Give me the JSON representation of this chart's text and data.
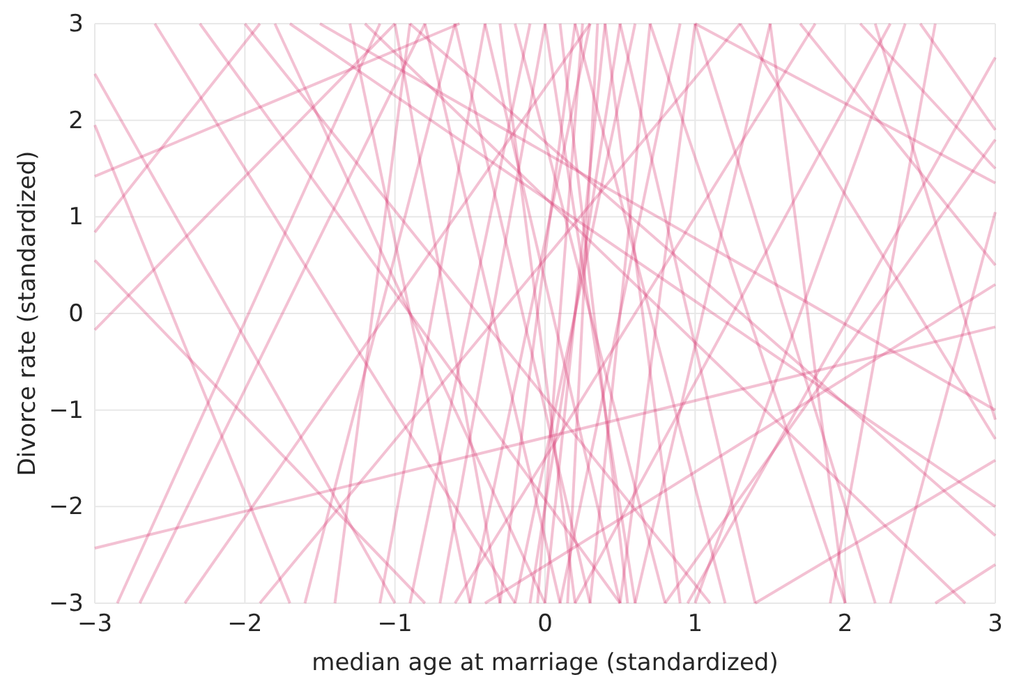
{
  "chart_data": {
    "type": "line",
    "xlabel": "median age at marriage (standardized)",
    "ylabel": "Divorce rate (standardized)",
    "color": "#d6336c",
    "xlim": [
      -3,
      3
    ],
    "ylim": [
      -3,
      3
    ],
    "xticks": [
      {
        "value": -3,
        "label": "−3"
      },
      {
        "value": -2,
        "label": "−2"
      },
      {
        "value": -1,
        "label": "−1"
      },
      0,
      1,
      2,
      3
    ],
    "yticks": [
      {
        "value": -3,
        "label": "−3"
      },
      {
        "value": -2,
        "label": "−2"
      },
      {
        "value": -1,
        "label": "−1"
      },
      0,
      1,
      2,
      3
    ],
    "grid": true,
    "marker": "none",
    "line_style": "solid",
    "series": [
      {
        "x": [
          -3,
          -0.57
        ],
        "values": [
          1.42,
          3
        ]
      },
      {
        "x": [
          -3,
          3
        ],
        "values": [
          -2.43,
          -0.14
        ]
      },
      {
        "x": [
          1.4,
          3
        ],
        "values": [
          -3,
          -1.52
        ]
      },
      {
        "x": [
          2.6,
          3
        ],
        "values": [
          -3,
          -2.6
        ]
      },
      {
        "x": [
          -3,
          -1.0
        ],
        "values": [
          -0.17,
          3
        ]
      },
      {
        "x": [
          -3,
          -0.8
        ],
        "values": [
          0.55,
          -3
        ]
      },
      {
        "x": [
          -3,
          -1.9
        ],
        "values": [
          0.84,
          3
        ]
      },
      {
        "x": [
          -3,
          -1.0
        ],
        "values": [
          2.48,
          -3
        ]
      },
      {
        "x": [
          -3,
          -1.7
        ],
        "values": [
          1.95,
          -3
        ]
      },
      {
        "x": [
          -2.85,
          -1.1
        ],
        "values": [
          -3,
          3
        ]
      },
      {
        "x": [
          -2.7,
          -0.8
        ],
        "values": [
          -3,
          3
        ]
      },
      {
        "x": [
          -2.6,
          -0.2
        ],
        "values": [
          3,
          -3
        ]
      },
      {
        "x": [
          -2.3,
          0.5
        ],
        "values": [
          3,
          -3
        ]
      },
      {
        "x": [
          -2.0,
          1.1
        ],
        "values": [
          3,
          -3
        ]
      },
      {
        "x": [
          -1.5,
          3
        ],
        "values": [
          3,
          -1.0
        ]
      },
      {
        "x": [
          -1.7,
          3
        ],
        "values": [
          3,
          -2.0
        ]
      },
      {
        "x": [
          -1.2,
          2.8
        ],
        "values": [
          3,
          -3
        ]
      },
      {
        "x": [
          -0.9,
          3
        ],
        "values": [
          3,
          -2.3
        ]
      },
      {
        "x": [
          -1.6,
          -0.6
        ],
        "values": [
          -3,
          3
        ]
      },
      {
        "x": [
          -1.4,
          -0.9
        ],
        "values": [
          -3,
          3
        ]
      },
      {
        "x": [
          -1.1,
          -0.4
        ],
        "values": [
          -3,
          3
        ]
      },
      {
        "x": [
          -0.9,
          -0.1
        ],
        "values": [
          -3,
          3
        ]
      },
      {
        "x": [
          -0.7,
          0.0
        ],
        "values": [
          -3,
          3
        ]
      },
      {
        "x": [
          -0.5,
          0.3
        ],
        "values": [
          -3,
          3
        ]
      },
      {
        "x": [
          -0.3,
          0.2
        ],
        "values": [
          -3,
          3
        ]
      },
      {
        "x": [
          -0.2,
          0.6
        ],
        "values": [
          -3,
          3
        ]
      },
      {
        "x": [
          0.0,
          0.4
        ],
        "values": [
          -3,
          3
        ]
      },
      {
        "x": [
          0.1,
          0.9
        ],
        "values": [
          -3,
          3
        ]
      },
      {
        "x": [
          0.3,
          0.7
        ],
        "values": [
          -3,
          3
        ]
      },
      {
        "x": [
          0.5,
          1.0
        ],
        "values": [
          -3,
          3
        ]
      },
      {
        "x": [
          -1.3,
          -0.5
        ],
        "values": [
          3,
          -3
        ]
      },
      {
        "x": [
          -1.0,
          -0.3
        ],
        "values": [
          3,
          -3
        ]
      },
      {
        "x": [
          -0.8,
          0.1
        ],
        "values": [
          3,
          -3
        ]
      },
      {
        "x": [
          -0.6,
          0.3
        ],
        "values": [
          3,
          -3
        ]
      },
      {
        "x": [
          -0.4,
          0.5
        ],
        "values": [
          3,
          -3
        ]
      },
      {
        "x": [
          -0.2,
          0.8
        ],
        "values": [
          3,
          -3
        ]
      },
      {
        "x": [
          0.0,
          0.6
        ],
        "values": [
          3,
          -3
        ]
      },
      {
        "x": [
          0.2,
          1.2
        ],
        "values": [
          3,
          -3
        ]
      },
      {
        "x": [
          0.5,
          1.4
        ],
        "values": [
          3,
          -3
        ]
      },
      {
        "x": [
          0.7,
          2.0
        ],
        "values": [
          3,
          -3
        ]
      },
      {
        "x": [
          1.0,
          2.2
        ],
        "values": [
          3,
          -3
        ]
      },
      {
        "x": [
          1.3,
          3
        ],
        "values": [
          3,
          -1.3
        ]
      },
      {
        "x": [
          1.7,
          3
        ],
        "values": [
          3,
          0.5
        ]
      },
      {
        "x": [
          2.1,
          3
        ],
        "values": [
          3,
          1.5
        ]
      },
      {
        "x": [
          -0.6,
          1.8
        ],
        "values": [
          -3,
          3
        ]
      },
      {
        "x": [
          0.2,
          2.3
        ],
        "values": [
          -3,
          3
        ]
      },
      {
        "x": [
          0.8,
          3
        ],
        "values": [
          -3,
          1.8
        ]
      },
      {
        "x": [
          0.95,
          3
        ],
        "values": [
          -3,
          2.65
        ]
      },
      {
        "x": [
          -0.4,
          3
        ],
        "values": [
          -3,
          0.3
        ]
      },
      {
        "x": [
          1.0,
          2.4
        ],
        "values": [
          -3,
          3
        ]
      },
      {
        "x": [
          1.9,
          2.6
        ],
        "values": [
          -3,
          3
        ]
      },
      {
        "x": [
          2.3,
          3
        ],
        "values": [
          -3,
          1.05
        ]
      },
      {
        "x": [
          2.5,
          3
        ],
        "values": [
          3,
          1.9
        ]
      },
      {
        "x": [
          2.2,
          3
        ],
        "values": [
          3,
          -1.1
        ]
      },
      {
        "x": [
          1.5,
          2.0
        ],
        "values": [
          3,
          -3
        ]
      },
      {
        "x": [
          -0.1,
          0.5
        ],
        "values": [
          -3,
          3
        ]
      },
      {
        "x": [
          0.4,
          0.9
        ],
        "values": [
          3,
          -3
        ]
      },
      {
        "x": [
          -0.3,
          0.2
        ],
        "values": [
          3,
          -3
        ]
      },
      {
        "x": [
          0.1,
          0.55
        ],
        "values": [
          3,
          -3
        ]
      },
      {
        "x": [
          -1.9,
          1.3
        ],
        "values": [
          -3,
          3
        ]
      },
      {
        "x": [
          -2.4,
          0.3
        ],
        "values": [
          -3,
          3
        ]
      },
      {
        "x": [
          -1.8,
          0.0
        ],
        "values": [
          3,
          -3
        ]
      },
      {
        "x": [
          0.6,
          1.5
        ],
        "values": [
          -3,
          3
        ]
      },
      {
        "x": [
          -0.05,
          0.25
        ],
        "values": [
          -3,
          3
        ]
      },
      {
        "x": [
          0.15,
          0.35
        ],
        "values": [
          -3,
          3
        ]
      },
      {
        "x": [
          1.0,
          3
        ],
        "values": [
          3,
          1.35
        ]
      }
    ]
  }
}
